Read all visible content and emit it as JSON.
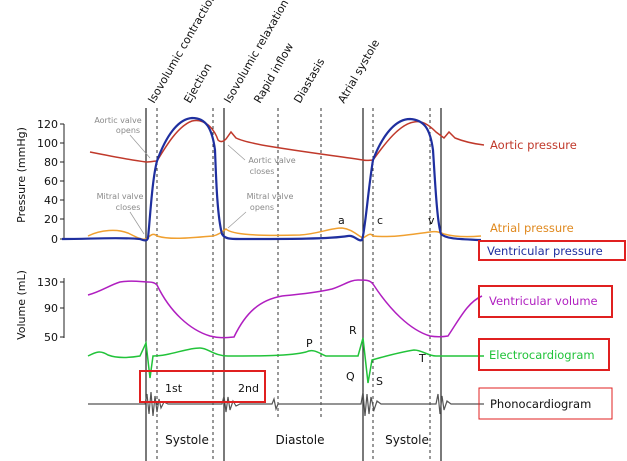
{
  "phases": [
    "Isovolumic contraction",
    "Ejection",
    "Isovolumic relaxation",
    "Rapid inflow",
    "Diastasis",
    "Atrial systole"
  ],
  "axes": {
    "pressure_label": "Pressure (mmHg)",
    "pressure_ticks": [
      "120",
      "100",
      "80",
      "60",
      "40",
      "20",
      "0"
    ],
    "volume_label": "Volume (mL)",
    "volume_ticks": [
      "130",
      "90",
      "50"
    ]
  },
  "annotations": {
    "aortic_valve_opens": [
      "Aortic valve",
      "opens"
    ],
    "aortic_valve_closes": [
      "Aortic valve",
      "closes"
    ],
    "mitral_valve_closes": [
      "Mitral valve",
      "closes"
    ],
    "mitral_valve_opens": [
      "Mitral valve",
      "opens"
    ],
    "a": "a",
    "c": "c",
    "v": "v",
    "P": "P",
    "Q": "Q",
    "R": "R",
    "S": "S",
    "T": "T"
  },
  "legend": {
    "aortic_pressure": "Aortic pressure",
    "atrial_pressure": "Atrial pressure",
    "ventricular_pressure": "Ventricular pressure",
    "ventricular_volume": "Ventricular volume",
    "electrocardiogram": "Electrocardiogram",
    "phonocardiogram": "Phonocardiogram"
  },
  "sounds": {
    "first": "1st",
    "second": "2nd"
  },
  "bottom": {
    "systole_1": "Systole",
    "diastole": "Diastole",
    "systole_2": "Systole"
  },
  "colors": {
    "aortic": "#c0392b",
    "atrial": "#f0a030",
    "ventricular_pressure": "#1f2f9f",
    "volume": "#b01fc0",
    "ecg": "#22c33a",
    "phono": "#555555",
    "highlight": "#e02020"
  }
}
